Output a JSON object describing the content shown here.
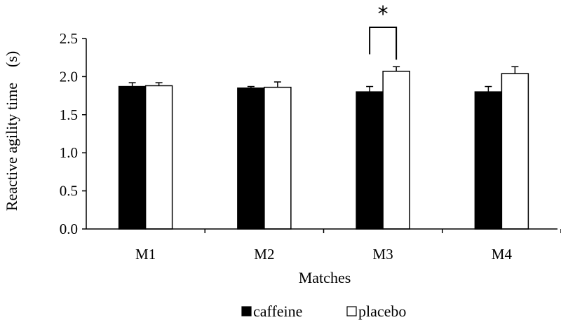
{
  "chart_data": {
    "type": "bar",
    "title": "",
    "xlabel": "Matches",
    "ylabel": "Reactive agility time　(s)",
    "categories": [
      "M1",
      "M2",
      "M3",
      "M4"
    ],
    "ylim": [
      0,
      2.5
    ],
    "yticks": [
      "0.0",
      "0.5",
      "1.0",
      "1.5",
      "2.0",
      "2.5"
    ],
    "grid": false,
    "legend_position": "bottom",
    "series": [
      {
        "name": "caffeine",
        "fill": "#000000",
        "values": [
          1.87,
          1.85,
          1.8,
          1.8
        ],
        "errors": [
          0.05,
          0.02,
          0.07,
          0.07
        ]
      },
      {
        "name": "placebo",
        "fill": "#ffffff",
        "values": [
          1.88,
          1.86,
          2.07,
          2.04
        ],
        "errors": [
          0.04,
          0.07,
          0.06,
          0.09
        ]
      }
    ],
    "annotations": [
      {
        "text": "*",
        "category": "M3",
        "meaning": "significant difference between caffeine and placebo"
      }
    ]
  }
}
